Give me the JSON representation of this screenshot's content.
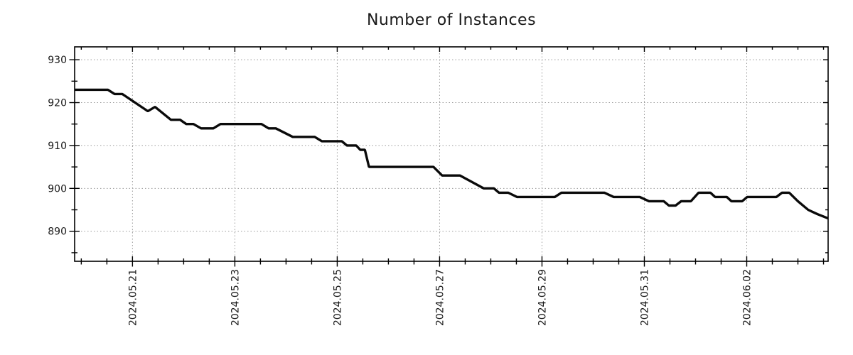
{
  "title": "Number of Instances",
  "colors": {
    "line": "#0a0a0a",
    "grid": "#9b9b9b",
    "axis": "#000000",
    "text": "#1a1a1a",
    "background": "#ffffff"
  },
  "chart_data": {
    "type": "line",
    "title": "Number of Instances",
    "xlabel": "",
    "ylabel": "",
    "grid": true,
    "legend": "none",
    "xlim": [
      0,
      14.72
    ],
    "ylim": [
      883,
      933
    ],
    "y_ticks": [
      890,
      900,
      910,
      920,
      930
    ],
    "y_minor_ticks": [
      885,
      895,
      905,
      915,
      925
    ],
    "x_ticks": [
      {
        "t": 1.13,
        "label": "2024.05.21"
      },
      {
        "t": 3.13,
        "label": "2024.05.23"
      },
      {
        "t": 5.13,
        "label": "2024.05.25"
      },
      {
        "t": 7.13,
        "label": "2024.05.27"
      },
      {
        "t": 9.13,
        "label": "2024.05.29"
      },
      {
        "t": 11.13,
        "label": "2024.05.31"
      },
      {
        "t": 13.13,
        "label": "2024.06.02"
      }
    ],
    "x_minor_step": 0.5,
    "x_minor_phase": 0.13,
    "series": [
      {
        "name": "instances",
        "points": [
          [
            0.0,
            923
          ],
          [
            0.65,
            923
          ],
          [
            0.78,
            922
          ],
          [
            0.93,
            922
          ],
          [
            1.43,
            918
          ],
          [
            1.57,
            919
          ],
          [
            1.88,
            916
          ],
          [
            2.06,
            916
          ],
          [
            2.18,
            915
          ],
          [
            2.32,
            915
          ],
          [
            2.47,
            914
          ],
          [
            2.71,
            914
          ],
          [
            2.85,
            915
          ],
          [
            3.65,
            915
          ],
          [
            3.79,
            914
          ],
          [
            3.93,
            914
          ],
          [
            4.26,
            912
          ],
          [
            4.69,
            912
          ],
          [
            4.83,
            911
          ],
          [
            5.22,
            911
          ],
          [
            5.32,
            910
          ],
          [
            5.5,
            910
          ],
          [
            5.58,
            909
          ],
          [
            5.67,
            909
          ],
          [
            5.75,
            905
          ],
          [
            7.01,
            905
          ],
          [
            7.18,
            903
          ],
          [
            7.53,
            903
          ],
          [
            7.99,
            900
          ],
          [
            8.19,
            900
          ],
          [
            8.29,
            899
          ],
          [
            8.47,
            899
          ],
          [
            8.64,
            898
          ],
          [
            9.38,
            898
          ],
          [
            9.51,
            899
          ],
          [
            10.35,
            899
          ],
          [
            10.53,
            898
          ],
          [
            11.04,
            898
          ],
          [
            11.22,
            897
          ],
          [
            11.51,
            897
          ],
          [
            11.61,
            896
          ],
          [
            11.74,
            896
          ],
          [
            11.85,
            897
          ],
          [
            12.04,
            897
          ],
          [
            12.19,
            899
          ],
          [
            12.42,
            899
          ],
          [
            12.51,
            898
          ],
          [
            12.74,
            898
          ],
          [
            12.83,
            897
          ],
          [
            13.04,
            897
          ],
          [
            13.14,
            898
          ],
          [
            13.71,
            898
          ],
          [
            13.82,
            899
          ],
          [
            13.96,
            899
          ],
          [
            14.13,
            897
          ],
          [
            14.33,
            895
          ],
          [
            14.51,
            894
          ],
          [
            14.72,
            893
          ]
        ]
      }
    ]
  }
}
